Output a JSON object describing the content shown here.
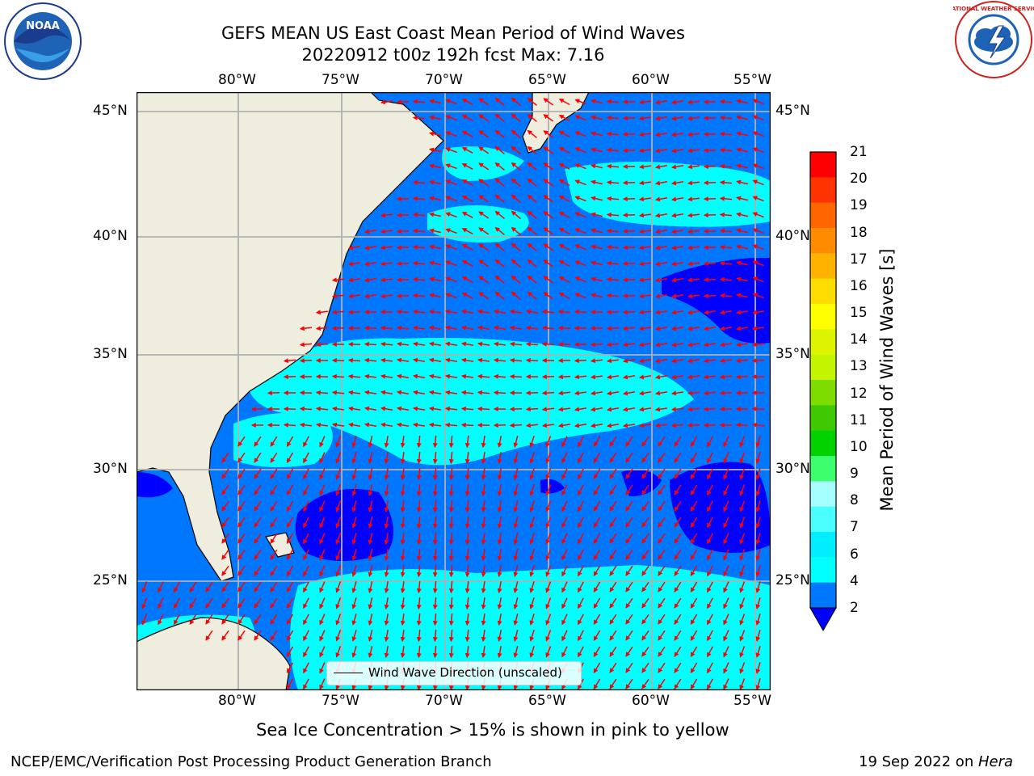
{
  "title": {
    "line1": "GEFS MEAN US East Coast Mean Period of Wind Waves",
    "line2": "20220912 t00z 192h fcst   Max: 7.16"
  },
  "logos": {
    "left": "NOAA",
    "right": "NATIONAL WEATHER SERVICE"
  },
  "map": {
    "lon_ticks_top": [
      "80°W",
      "75°W",
      "70°W",
      "65°W",
      "60°W",
      "55°W"
    ],
    "lon_ticks_bottom": [
      "80°W",
      "75°W",
      "70°W",
      "65°W",
      "60°W",
      "55°W"
    ],
    "lat_ticks_left": [
      "45°N",
      "40°N",
      "35°N",
      "30°N",
      "25°N"
    ],
    "lat_ticks_right": [
      "45°N",
      "40°N",
      "35°N",
      "30°N",
      "25°N"
    ],
    "lon_range": [
      -85,
      -54.3
    ],
    "lat_range": [
      20.5,
      46
    ],
    "land_color": "#efedde",
    "grid_color": "#b0b0b0",
    "arrow_color": "#ff0000",
    "legend_label": "Wind Wave Direction (unscaled)"
  },
  "colorbar": {
    "label": "Mean Period of Wind Waves [s]",
    "ticks": [
      "21",
      "20",
      "19",
      "18",
      "17",
      "16",
      "15",
      "14",
      "13",
      "12",
      "11",
      "10",
      "9",
      "8",
      "7",
      "6",
      "4",
      "2"
    ],
    "colors": [
      "#ff0000",
      "#ff3300",
      "#ff6600",
      "#ff8c00",
      "#ffb300",
      "#ffdd00",
      "#ffff00",
      "#ddf300",
      "#c3f500",
      "#7ddd00",
      "#3ec900",
      "#00d200",
      "#3dff6d",
      "#a6ffff",
      "#4cffff",
      "#00eeff",
      "#00ffff",
      "#0077ff"
    ],
    "under_color": "#0000ff"
  },
  "subtitle": "Sea Ice Concentration > 15% is shown in pink to yellow",
  "footer": {
    "left": "NCEP/EMC/Verification Post Processing Product Generation Branch",
    "right_date": "19 Sep 2022 on ",
    "right_host": "Hera"
  }
}
